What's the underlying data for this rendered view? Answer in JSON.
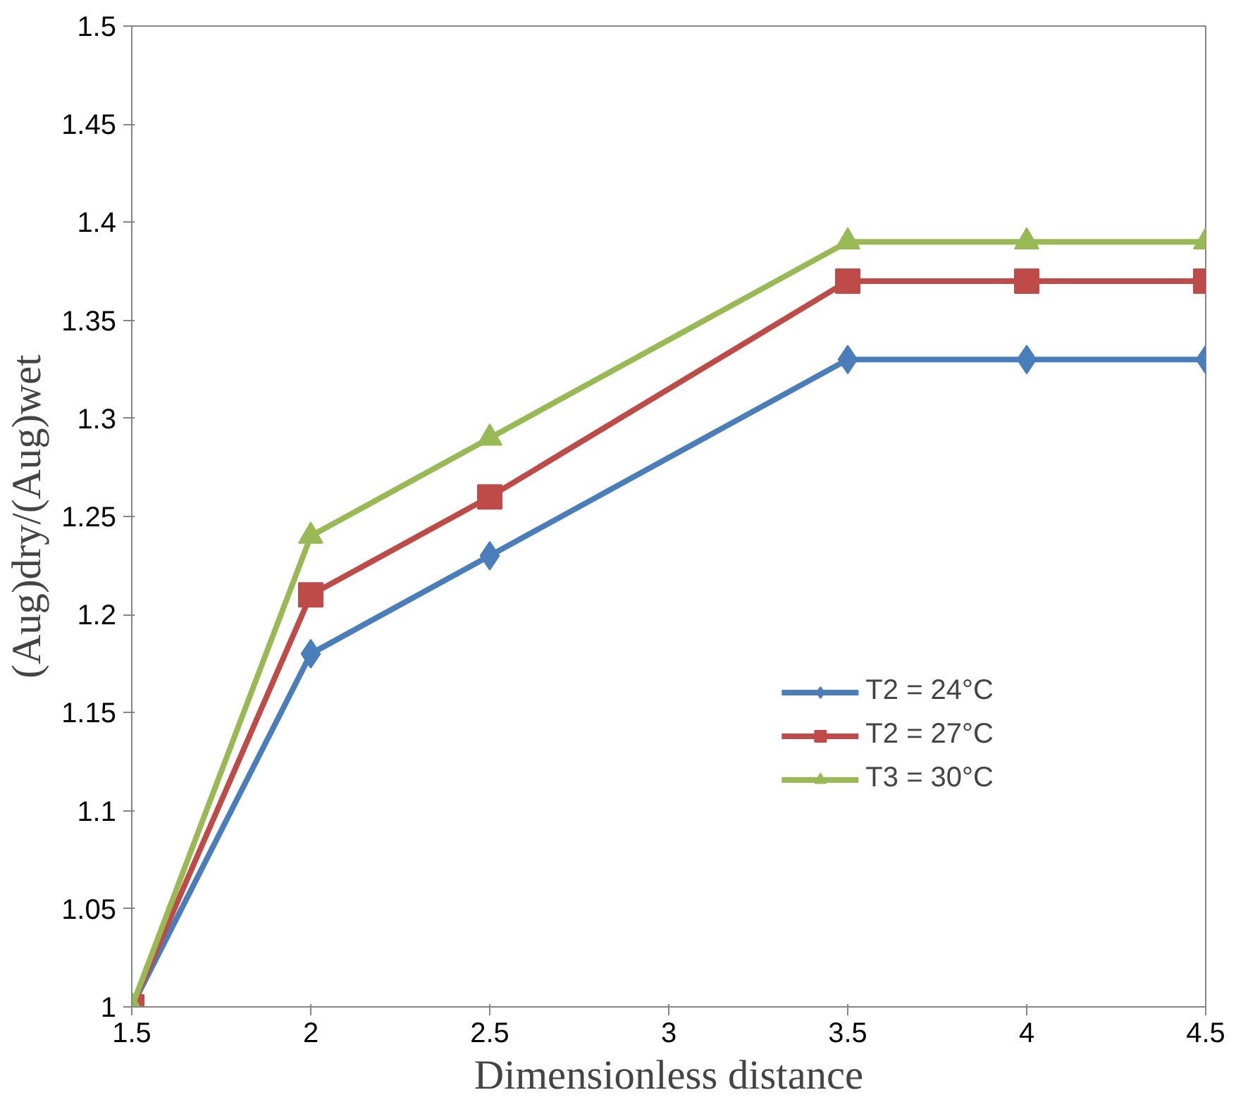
{
  "chart_data": {
    "type": "line",
    "xlabel": "Dimensionless distance",
    "ylabel": "(Aug)dry/(Aug)wet",
    "x": [
      1.5,
      2,
      2.5,
      3.5,
      4,
      4.5
    ],
    "xlim": [
      1.5,
      4.5
    ],
    "xticks": [
      1.5,
      2,
      2.5,
      3,
      3.5,
      4,
      4.5
    ],
    "ylim": [
      1,
      1.5
    ],
    "yticks": [
      1,
      1.05,
      1.1,
      1.15,
      1.2,
      1.25,
      1.3,
      1.35,
      1.4,
      1.45,
      1.5
    ],
    "grid": false,
    "legend": "bottom right",
    "line_style": "solid",
    "series": [
      {
        "name": "T2 = 24°C",
        "color": "#4a7ebb",
        "marker": "diamond",
        "values": [
          1,
          1.18,
          1.23,
          1.33,
          1.33,
          1.33
        ]
      },
      {
        "name": "T2 = 27°C",
        "color": "#be4b48",
        "marker": "square",
        "values": [
          1,
          1.21,
          1.26,
          1.37,
          1.37,
          1.37
        ]
      },
      {
        "name": "T3 = 30°C",
        "color": "#98b954",
        "marker": "triangle",
        "values": [
          1,
          1.24,
          1.29,
          1.39,
          1.39,
          1.39
        ]
      }
    ]
  }
}
